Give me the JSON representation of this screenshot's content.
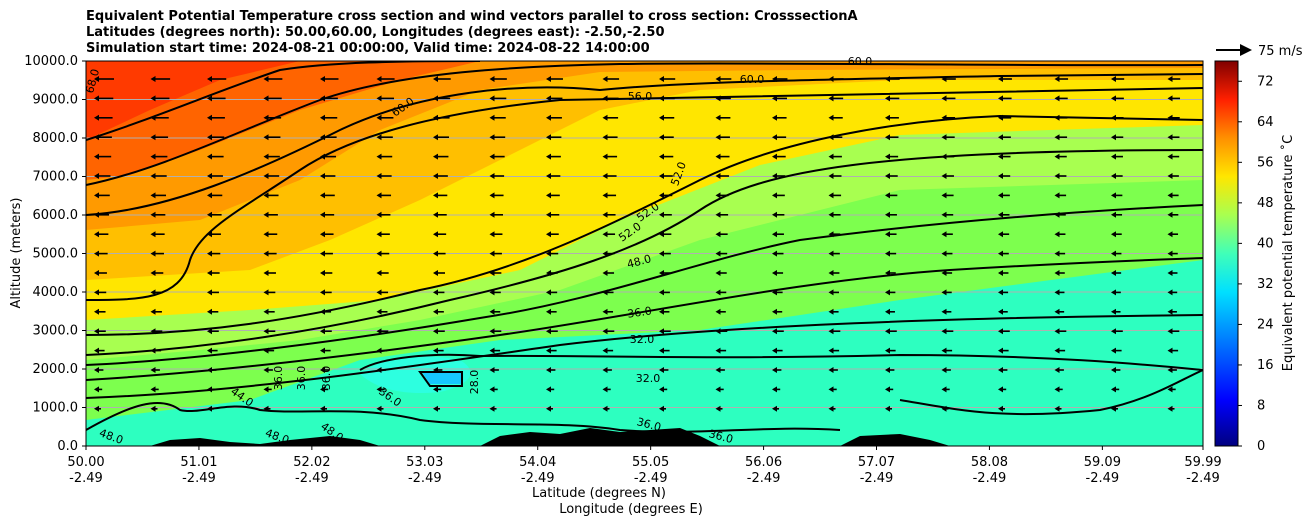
{
  "chart_data": {
    "type": "heatmap",
    "title_lines": [
      "Equivalent Potential Temperature cross section and wind vectors parallel to cross section: CrosssectionA",
      "Latitudes (degrees north): 50.00,60.00, Longitudes (degrees east): -2.50,-2.50",
      "Simulation start time: 2024-08-21 00:00:00, Valid time: 2024-08-22 14:00:00"
    ],
    "ylabel": "Altitude (meters)",
    "xlabel": "Latitude (degrees N)",
    "xlabel2": "Longitude (degrees E)",
    "ylim": [
      0,
      10000
    ],
    "yticks": [
      0,
      1000,
      2000,
      3000,
      4000,
      5000,
      6000,
      7000,
      8000,
      9000,
      10000
    ],
    "ytick_labels": [
      "0.0",
      "1000.0",
      "2000.0",
      "3000.0",
      "4000.0",
      "5000.0",
      "6000.0",
      "7000.0",
      "8000.0",
      "9000.0",
      "10000.0"
    ],
    "xlim": [
      50.0,
      59.99
    ],
    "xticks_lat": [
      50.0,
      51.01,
      52.02,
      53.03,
      54.04,
      55.05,
      56.06,
      57.07,
      58.08,
      59.09,
      59.99
    ],
    "xtick_labels_lat": [
      "50.00",
      "51.01",
      "52.02",
      "53.03",
      "54.04",
      "55.05",
      "56.06",
      "57.07",
      "58.08",
      "59.09",
      "59.99"
    ],
    "xtick_labels_lon": [
      "-2.49",
      "-2.49",
      "-2.49",
      "-2.49",
      "-2.49",
      "-2.49",
      "-2.49",
      "-2.49",
      "-2.49",
      "-2.49",
      "-2.49"
    ],
    "colorbar": {
      "label": "Equivalent potential temperature $^\\circ$C",
      "label_display": "Equivalent potential temperature ˚C",
      "range": [
        0,
        76
      ],
      "ticks": [
        0,
        8,
        16,
        24,
        32,
        40,
        48,
        56,
        64,
        72
      ],
      "tick_labels": [
        "0",
        "8",
        "16",
        "24",
        "32",
        "40",
        "48",
        "56",
        "64",
        "72"
      ]
    },
    "quiver_key": {
      "label": "75 m/s",
      "value": 75
    },
    "contour_labels": [
      "68.0",
      "60.0",
      "56.0",
      "60.0",
      "60.0",
      "52.0",
      "52.0",
      "52.0",
      "48.0",
      "36.0",
      "32.0",
      "32.0",
      "28.0",
      "36.0",
      "36.0",
      "36.0",
      "36.0",
      "44.0",
      "48.0",
      "48.0",
      "48.0",
      "36.0",
      "36.0"
    ],
    "grid": "horizontal"
  }
}
